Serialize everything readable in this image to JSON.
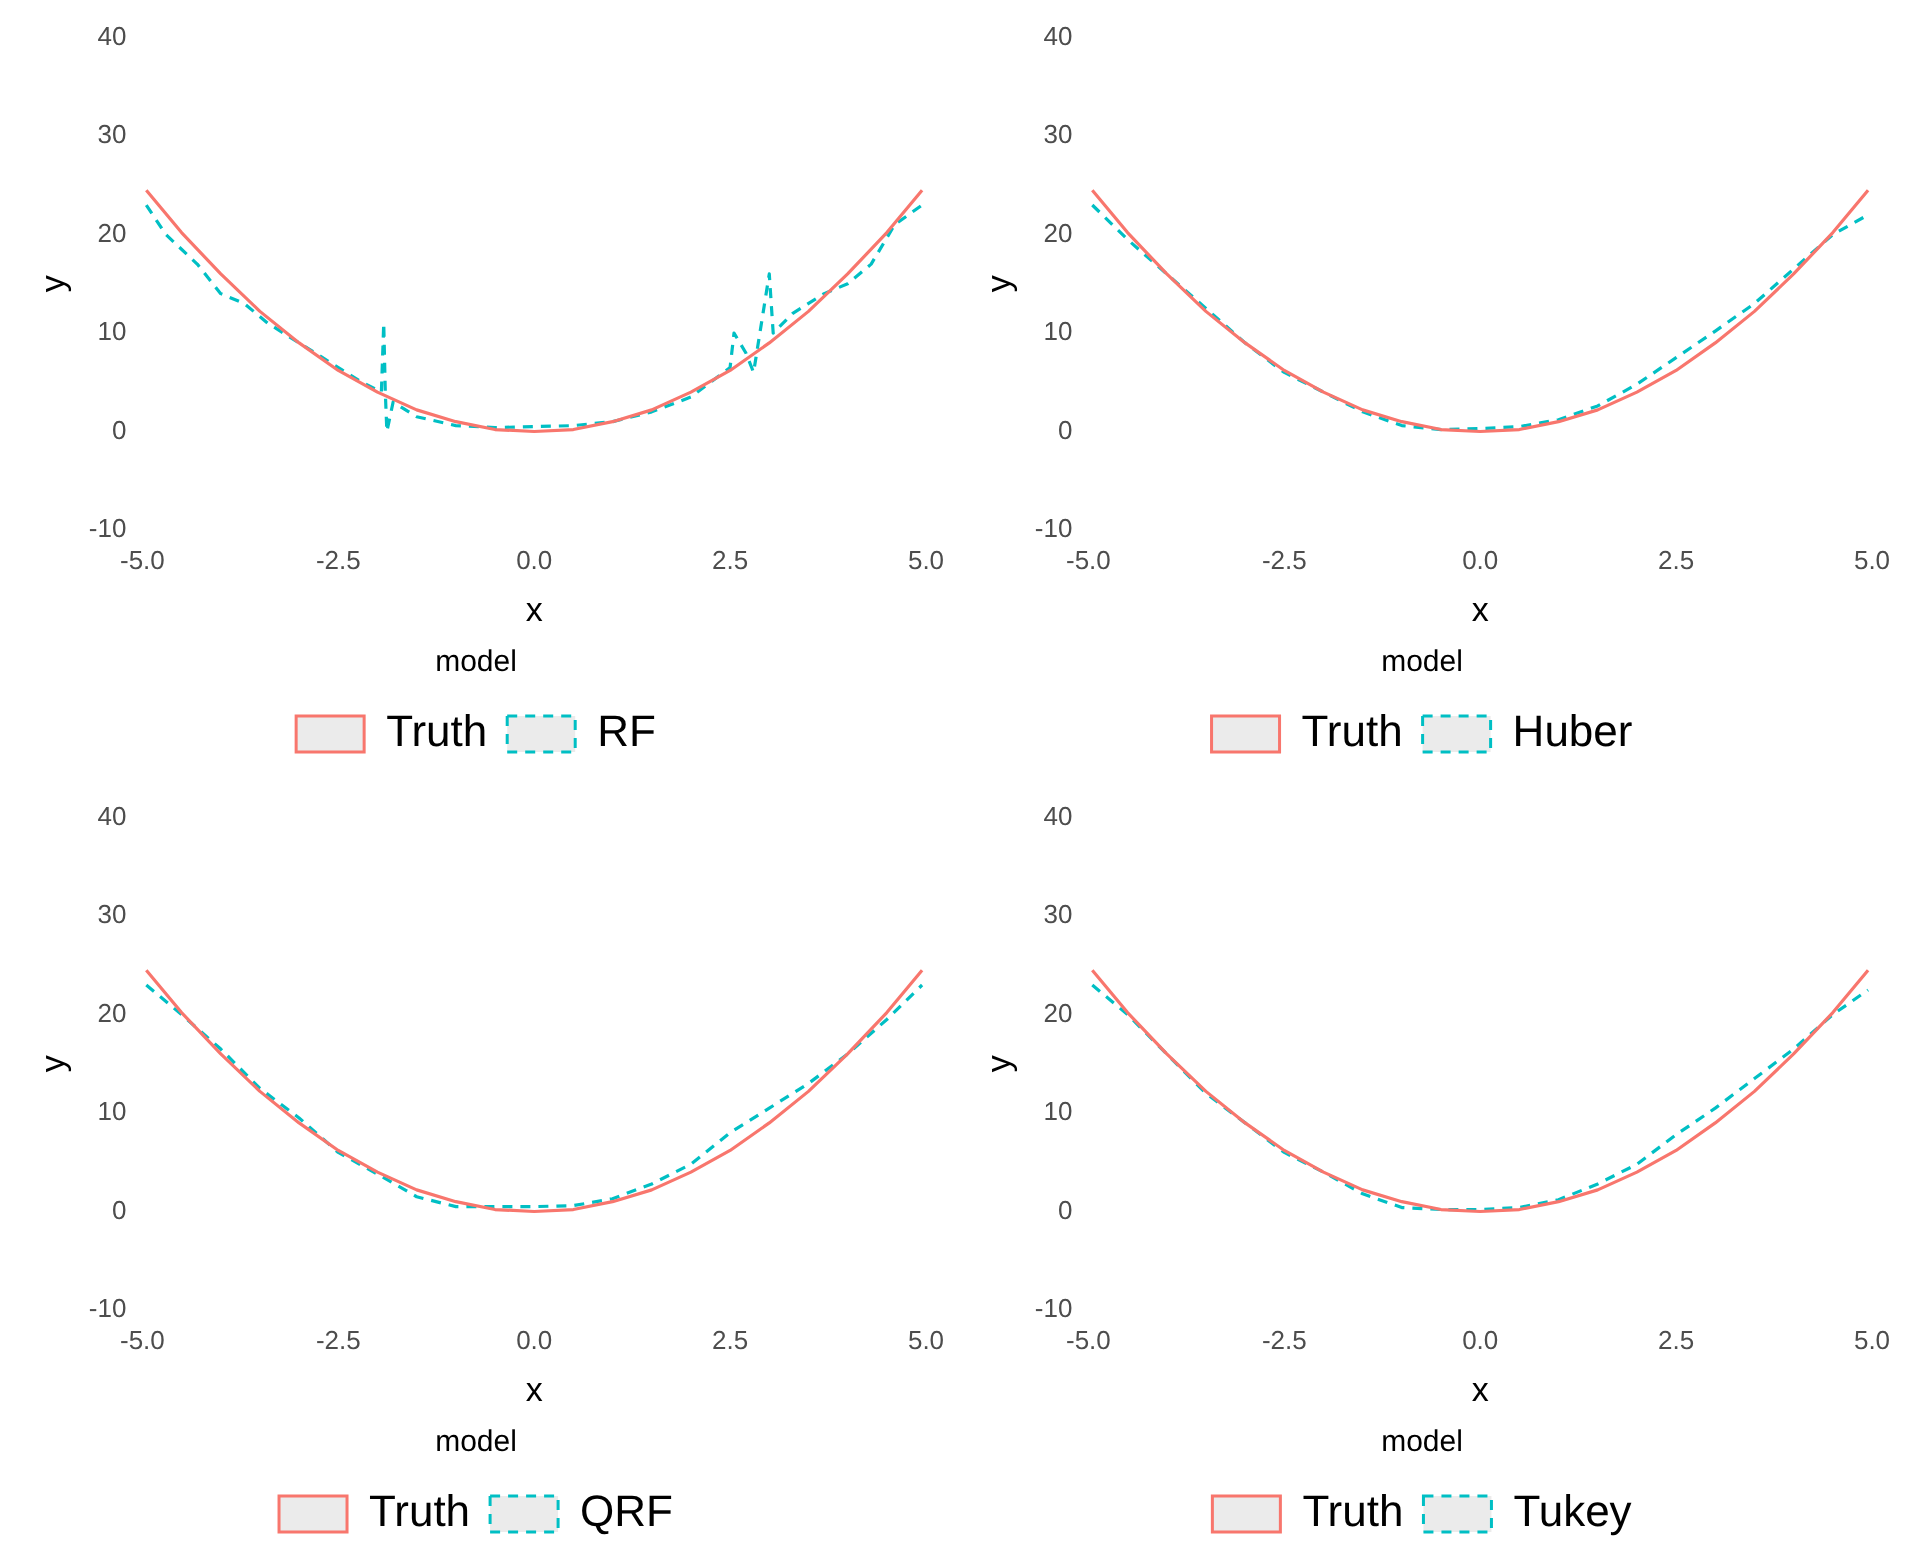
{
  "chart_data": [
    {
      "type": "line",
      "xlabel": "x",
      "ylabel": "y",
      "legend_title": "model",
      "legend": "bottom",
      "grid": false,
      "xlim": [
        -5,
        5
      ],
      "ylim": [
        -10,
        40
      ],
      "xticks": [
        {
          "value": -5,
          "label": "-5.0"
        },
        {
          "value": -2.5,
          "label": "-2.5"
        },
        {
          "value": 0,
          "label": "0.0"
        },
        {
          "value": 2.5,
          "label": "2.5"
        },
        {
          "value": 5,
          "label": "5.0"
        }
      ],
      "yticks": [
        -10,
        0,
        10,
        20,
        30,
        40
      ],
      "series": [
        {
          "name": "Truth",
          "color": "#f8766d",
          "line_style": "solid",
          "x": [
            -4.95,
            -4.5,
            -4,
            -3.5,
            -3,
            -2.5,
            -2,
            -1.5,
            -1,
            -0.5,
            0,
            0.5,
            1,
            1.5,
            2,
            2.5,
            3,
            3.5,
            4,
            4.5,
            4.95
          ],
          "values": [
            24.5,
            20.2,
            16,
            12.2,
            9,
            6.2,
            4,
            2.2,
            1,
            0.2,
            0,
            0.2,
            1,
            2.2,
            4,
            6.2,
            9,
            12.2,
            16,
            20.2,
            24.5
          ]
        },
        {
          "name": "RF",
          "color": "#00bfc4",
          "line_style": "dashed",
          "x": [
            -4.95,
            -4.7,
            -4.3,
            -4,
            -3.7,
            -3.4,
            -3,
            -2.6,
            -2.2,
            -1.95,
            -1.92,
            -1.9,
            -1.88,
            -1.8,
            -1.5,
            -1,
            -0.5,
            0,
            0.5,
            1,
            1.5,
            2,
            2.5,
            2.55,
            2.7,
            2.8,
            2.9,
            3,
            3.05,
            3.3,
            3.7,
            4,
            4.3,
            4.6,
            4.95
          ],
          "values": [
            23,
            20,
            17,
            14,
            13,
            11,
            9,
            7,
            5,
            4,
            11,
            4,
            0,
            3,
            1.5,
            0.6,
            0.4,
            0.5,
            0.6,
            1,
            2,
            3.5,
            6.5,
            10,
            8,
            6,
            11,
            16,
            10,
            12,
            14,
            15,
            17,
            21,
            23
          ]
        }
      ]
    },
    {
      "type": "line",
      "xlabel": "x",
      "ylabel": "y",
      "legend_title": "model",
      "legend": "bottom",
      "grid": false,
      "xlim": [
        -5,
        5
      ],
      "ylim": [
        -10,
        40
      ],
      "xticks": [
        {
          "value": -5,
          "label": "-5.0"
        },
        {
          "value": -2.5,
          "label": "-2.5"
        },
        {
          "value": 0,
          "label": "0.0"
        },
        {
          "value": 2.5,
          "label": "2.5"
        },
        {
          "value": 5,
          "label": "5.0"
        }
      ],
      "yticks": [
        -10,
        0,
        10,
        20,
        30,
        40
      ],
      "series": [
        {
          "name": "Truth",
          "color": "#f8766d",
          "line_style": "solid",
          "x": [
            -4.95,
            -4.5,
            -4,
            -3.5,
            -3,
            -2.5,
            -2,
            -1.5,
            -1,
            -0.5,
            0,
            0.5,
            1,
            1.5,
            2,
            2.5,
            3,
            3.5,
            4,
            4.5,
            4.95
          ],
          "values": [
            24.5,
            20.2,
            16,
            12.2,
            9,
            6.2,
            4,
            2.2,
            1,
            0.2,
            0,
            0.2,
            1,
            2.2,
            4,
            6.2,
            9,
            12.2,
            16,
            20.2,
            24.5
          ]
        },
        {
          "name": "Huber",
          "color": "#00bfc4",
          "line_style": "dashed",
          "x": [
            -4.95,
            -4.5,
            -4,
            -3.5,
            -3,
            -2.5,
            -2,
            -1.5,
            -1,
            -0.5,
            0,
            0.5,
            1,
            1.5,
            2,
            2.5,
            3,
            3.5,
            4,
            4.5,
            4.95
          ],
          "values": [
            23,
            19.5,
            16,
            12.5,
            9,
            6,
            4,
            2,
            0.6,
            0.2,
            0.3,
            0.5,
            1.2,
            2.6,
            4.8,
            7.5,
            10.2,
            13,
            16.5,
            20,
            22
          ]
        }
      ]
    },
    {
      "type": "line",
      "xlabel": "x",
      "ylabel": "y",
      "legend_title": "model",
      "legend": "bottom",
      "grid": false,
      "xlim": [
        -5,
        5
      ],
      "ylim": [
        -10,
        40
      ],
      "xticks": [
        {
          "value": -5,
          "label": "-5.0"
        },
        {
          "value": -2.5,
          "label": "-2.5"
        },
        {
          "value": 0,
          "label": "0.0"
        },
        {
          "value": 2.5,
          "label": "2.5"
        },
        {
          "value": 5,
          "label": "5.0"
        }
      ],
      "yticks": [
        -10,
        0,
        10,
        20,
        30,
        40
      ],
      "series": [
        {
          "name": "Truth",
          "color": "#f8766d",
          "line_style": "solid",
          "x": [
            -4.95,
            -4.5,
            -4,
            -3.5,
            -3,
            -2.5,
            -2,
            -1.5,
            -1,
            -0.5,
            0,
            0.5,
            1,
            1.5,
            2,
            2.5,
            3,
            3.5,
            4,
            4.5,
            4.95
          ],
          "values": [
            24.5,
            20.2,
            16,
            12.2,
            9,
            6.2,
            4,
            2.2,
            1,
            0.2,
            0,
            0.2,
            1,
            2.2,
            4,
            6.2,
            9,
            12.2,
            16,
            20.2,
            24.5
          ]
        },
        {
          "name": "QRF",
          "color": "#00bfc4",
          "line_style": "dashed",
          "x": [
            -4.95,
            -4.5,
            -4,
            -3.5,
            -3,
            -2.5,
            -2,
            -1.5,
            -1,
            -0.5,
            0,
            0.5,
            1,
            1.5,
            2,
            2.5,
            3,
            3.5,
            4,
            4.5,
            4.95
          ],
          "values": [
            23,
            20,
            16.5,
            12.5,
            9.5,
            6,
            3.8,
            1.5,
            0.5,
            0.5,
            0.5,
            0.6,
            1.3,
            2.8,
            4.8,
            8,
            10.5,
            13,
            16,
            19.5,
            23
          ]
        }
      ]
    },
    {
      "type": "line",
      "xlabel": "x",
      "ylabel": "y",
      "legend_title": "model",
      "legend": "bottom",
      "grid": false,
      "xlim": [
        -5,
        5
      ],
      "ylim": [
        -10,
        40
      ],
      "xticks": [
        {
          "value": -5,
          "label": "-5.0"
        },
        {
          "value": -2.5,
          "label": "-2.5"
        },
        {
          "value": 0,
          "label": "0.0"
        },
        {
          "value": 2.5,
          "label": "2.5"
        },
        {
          "value": 5,
          "label": "5.0"
        }
      ],
      "yticks": [
        -10,
        0,
        10,
        20,
        30,
        40
      ],
      "series": [
        {
          "name": "Truth",
          "color": "#f8766d",
          "line_style": "solid",
          "x": [
            -4.95,
            -4.5,
            -4,
            -3.5,
            -3,
            -2.5,
            -2,
            -1.5,
            -1,
            -0.5,
            0,
            0.5,
            1,
            1.5,
            2,
            2.5,
            3,
            3.5,
            4,
            4.5,
            4.95
          ],
          "values": [
            24.5,
            20.2,
            16,
            12.2,
            9,
            6.2,
            4,
            2.2,
            1,
            0.2,
            0,
            0.2,
            1,
            2.2,
            4,
            6.2,
            9,
            12.2,
            16,
            20.2,
            24.5
          ]
        },
        {
          "name": "Tukey",
          "color": "#00bfc4",
          "line_style": "dashed",
          "x": [
            -4.95,
            -4.5,
            -4,
            -3.5,
            -3,
            -2.5,
            -2,
            -1.5,
            -1,
            -0.5,
            0,
            0.5,
            1,
            1.5,
            2,
            2.5,
            3,
            3.5,
            4,
            4.5,
            4.95
          ],
          "values": [
            23,
            20,
            16,
            12,
            9,
            6,
            4,
            1.8,
            0.4,
            0.2,
            0.2,
            0.4,
            1.2,
            2.8,
            4.8,
            7.8,
            10.5,
            13.5,
            16.5,
            20,
            22.5
          ]
        }
      ]
    }
  ]
}
